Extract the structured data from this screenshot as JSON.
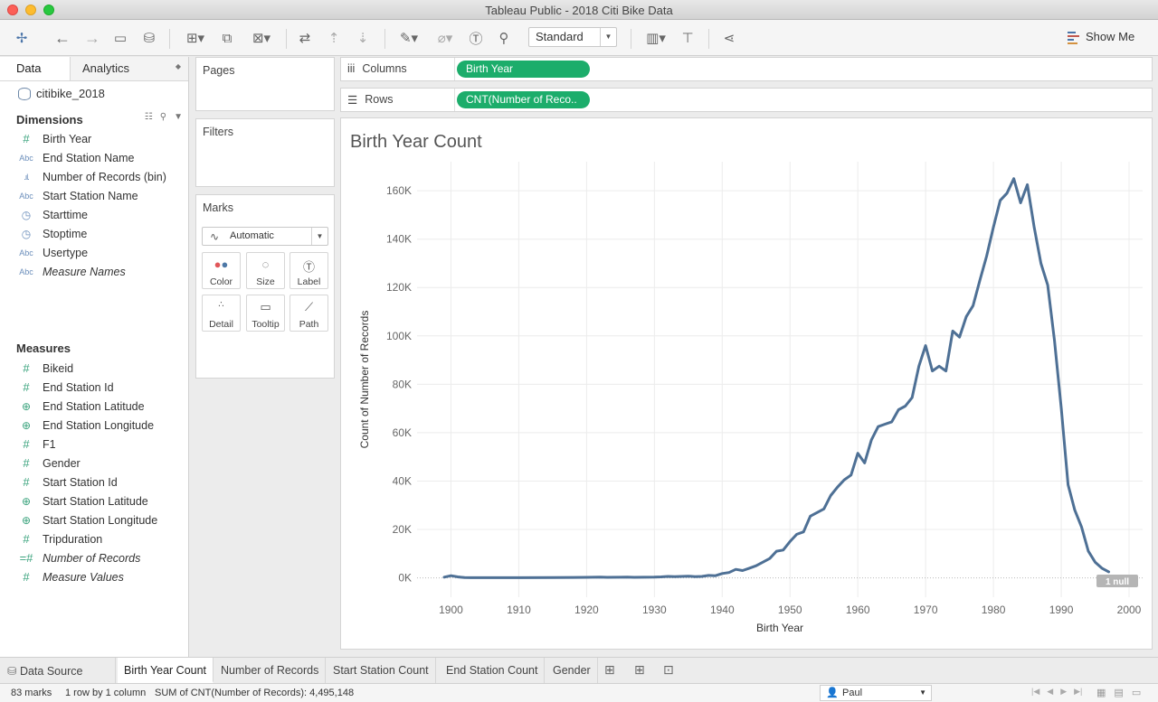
{
  "window": {
    "title": "Tableau Public - 2018 Citi Bike Data"
  },
  "toolbar": {
    "fit_select": "Standard",
    "show_me": "Show Me"
  },
  "data_pane": {
    "tab_data": "Data",
    "tab_analytics": "Analytics",
    "datasource": "citibike_2018",
    "dimensions_header": "Dimensions",
    "dimensions": [
      {
        "icon": "#",
        "label": "Birth Year",
        "italic": false
      },
      {
        "icon": "Abc",
        "label": "End Station Name",
        "italic": false
      },
      {
        "icon": ".ıl.",
        "label": "Number of Records (bin)",
        "italic": false
      },
      {
        "icon": "Abc",
        "label": "Start Station Name",
        "italic": false
      },
      {
        "icon": "cal",
        "label": "Starttime",
        "italic": false
      },
      {
        "icon": "cal",
        "label": "Stoptime",
        "italic": false
      },
      {
        "icon": "Abc",
        "label": "Usertype",
        "italic": false
      },
      {
        "icon": "Abc",
        "label": "Measure Names",
        "italic": true
      }
    ],
    "measures_header": "Measures",
    "measures": [
      {
        "icon": "#",
        "label": "Bikeid",
        "italic": false
      },
      {
        "icon": "#",
        "label": "End Station Id",
        "italic": false
      },
      {
        "icon": "globe",
        "label": "End Station Latitude",
        "italic": false
      },
      {
        "icon": "globe",
        "label": "End Station Longitude",
        "italic": false
      },
      {
        "icon": "#",
        "label": "F1",
        "italic": false
      },
      {
        "icon": "#",
        "label": "Gender",
        "italic": false
      },
      {
        "icon": "#",
        "label": "Start Station Id",
        "italic": false
      },
      {
        "icon": "globe",
        "label": "Start Station Latitude",
        "italic": false
      },
      {
        "icon": "globe",
        "label": "Start Station Longitude",
        "italic": false
      },
      {
        "icon": "#",
        "label": "Tripduration",
        "italic": false
      },
      {
        "icon": "=#",
        "label": "Number of Records",
        "italic": true
      },
      {
        "icon": "#",
        "label": "Measure Values",
        "italic": true
      }
    ]
  },
  "cards": {
    "pages": "Pages",
    "filters": "Filters",
    "marks": "Marks",
    "mark_type": "Automatic",
    "mark_buttons": [
      "Color",
      "Size",
      "Label",
      "Detail",
      "Tooltip",
      "Path"
    ]
  },
  "shelves": {
    "columns_label": "Columns",
    "columns_pill": "Birth Year",
    "rows_label": "Rows",
    "rows_pill": "CNT(Number of Reco.."
  },
  "chart_data": {
    "type": "line",
    "title": "Birth Year Count",
    "xlabel": "Birth Year",
    "ylabel": "Count of Number of Records",
    "xlim": [
      1895,
      2002
    ],
    "ylim": [
      -8000,
      172000
    ],
    "x_ticks": [
      1900,
      1910,
      1920,
      1930,
      1940,
      1950,
      1960,
      1970,
      1980,
      1990,
      2000
    ],
    "y_ticks": [
      0,
      20000,
      40000,
      60000,
      80000,
      100000,
      120000,
      140000,
      160000
    ],
    "y_tick_labels": [
      "0K",
      "20K",
      "40K",
      "60K",
      "80K",
      "100K",
      "120K",
      "140K",
      "160K"
    ],
    "null_indicator": "1 null",
    "line_color": "#4e7095",
    "series": [
      {
        "x": [
          1899,
          1900,
          1901,
          1902,
          1903,
          1905,
          1910,
          1915,
          1920,
          1922,
          1923,
          1925,
          1926,
          1927,
          1930,
          1931,
          1932,
          1933,
          1934,
          1935,
          1936,
          1937,
          1938,
          1939,
          1940,
          1941,
          1942,
          1943,
          1944,
          1945,
          1946,
          1947,
          1948,
          1949,
          1950,
          1951,
          1952,
          1953,
          1954,
          1955,
          1956,
          1957,
          1958,
          1959,
          1960,
          1961,
          1962,
          1963,
          1964,
          1965,
          1966,
          1967,
          1968,
          1969,
          1970,
          1971,
          1972,
          1973,
          1974,
          1975,
          1976,
          1977,
          1978,
          1979,
          1980,
          1981,
          1982,
          1983,
          1984,
          1985,
          1986,
          1987,
          1988,
          1989,
          1990,
          1991,
          1992,
          1993,
          1994,
          1995,
          1996,
          1997
        ],
        "y": [
          300,
          900,
          400,
          100,
          50,
          50,
          50,
          100,
          200,
          300,
          200,
          250,
          300,
          200,
          300,
          400,
          600,
          500,
          600,
          700,
          500,
          600,
          1000,
          900,
          1800,
          2200,
          3500,
          3000,
          4000,
          5000,
          6500,
          8000,
          11000,
          11500,
          15000,
          18000,
          19000,
          25500,
          27000,
          28500,
          34000,
          37500,
          40500,
          42500,
          51500,
          47500,
          57000,
          62500,
          63500,
          64500,
          69500,
          71000,
          74500,
          87500,
          96000,
          85500,
          87500,
          85500,
          102000,
          99500,
          108000,
          112500,
          123000,
          133000,
          145000,
          156000,
          159000,
          165000,
          155000,
          162500,
          145000,
          130000,
          121000,
          98000,
          70000,
          38500,
          28000,
          21000,
          11000,
          6500,
          4000,
          2500
        ]
      }
    ]
  },
  "sheet_tabs": {
    "data_source": "Data Source",
    "sheets": [
      "Birth Year Count",
      "Number of Records",
      "Start Station Count",
      "End Station Count",
      "Gender"
    ],
    "active": "Birth Year Count"
  },
  "status": {
    "marks": "83 marks",
    "layout": "1 row by 1 column",
    "sum": "SUM of CNT(Number of Records): 4,495,148",
    "user": "Paul"
  }
}
